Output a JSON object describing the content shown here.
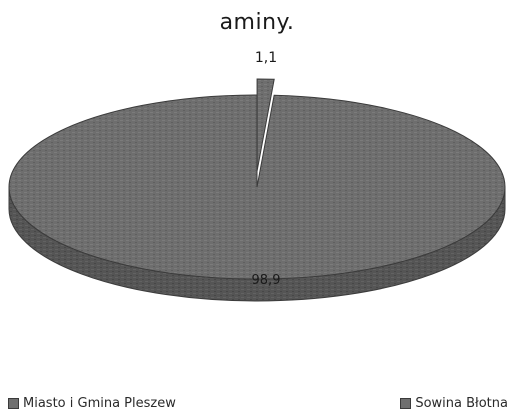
{
  "chart_data": {
    "type": "pie",
    "title": "aminy.",
    "series": [
      {
        "name": "Miasto i Gmina Pleszew",
        "value": 98.9,
        "label": "98,9"
      },
      {
        "name": "Sowina Błotna",
        "value": 1.1,
        "label": "1,1"
      }
    ],
    "legend_position": "bottom",
    "colors": {
      "slice": "#6e6e6e",
      "slice_dark": "#4c4c4c",
      "edge": "#3b3b3b"
    }
  }
}
